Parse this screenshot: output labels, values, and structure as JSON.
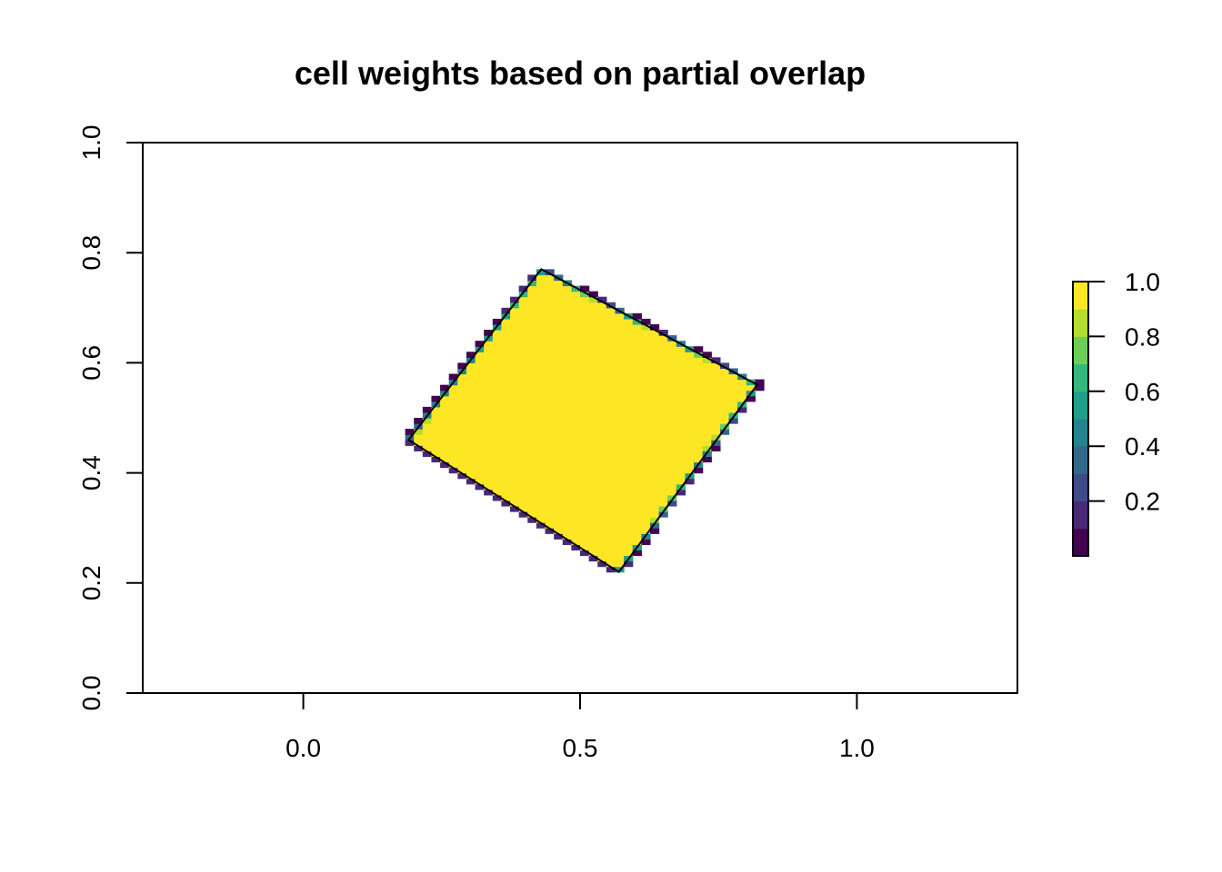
{
  "chart_data": {
    "type": "heatmap",
    "title": "cell weights based on partial overlap",
    "xlabel": "",
    "ylabel": "",
    "xlim": [
      -0.29,
      1.29
    ],
    "ylim": [
      0.0,
      1.0
    ],
    "x_ticks": [
      0.0,
      0.5,
      1.0
    ],
    "x_tick_labels": [
      "0.0",
      "0.5",
      "1.0"
    ],
    "y_ticks": [
      0.0,
      0.2,
      0.4,
      0.6,
      0.8,
      1.0
    ],
    "y_tick_labels": [
      "0.0",
      "0.2",
      "0.4",
      "0.6",
      "0.8",
      "1.0"
    ],
    "grid": false,
    "raster": {
      "ncol": 100,
      "nrow": 100,
      "xmin": -0.29,
      "xmax": 1.29,
      "ymin": 0.0,
      "ymax": 1.0,
      "value_description": "fraction of each cell covered by the polygon (0 to 1)"
    },
    "polygon": {
      "vertices": [
        [
          0.43,
          0.77
        ],
        [
          0.82,
          0.56
        ],
        [
          0.57,
          0.22
        ],
        [
          0.19,
          0.46
        ]
      ]
    },
    "legend": {
      "placement": "right",
      "ticks": [
        0.2,
        0.4,
        0.6,
        0.8,
        1.0
      ],
      "tick_labels": [
        "0.2",
        "0.4",
        "0.6",
        "0.8",
        "1.0"
      ],
      "breaks": [
        0.0,
        0.1,
        0.2,
        0.3,
        0.4,
        0.5,
        0.6,
        0.7,
        0.8,
        0.9,
        1.0
      ],
      "colors": [
        "#440154",
        "#482878",
        "#3E4A89",
        "#31688E",
        "#26828E",
        "#1F9E89",
        "#35B779",
        "#6DCD59",
        "#B4DE2C",
        "#FDE725"
      ]
    }
  }
}
